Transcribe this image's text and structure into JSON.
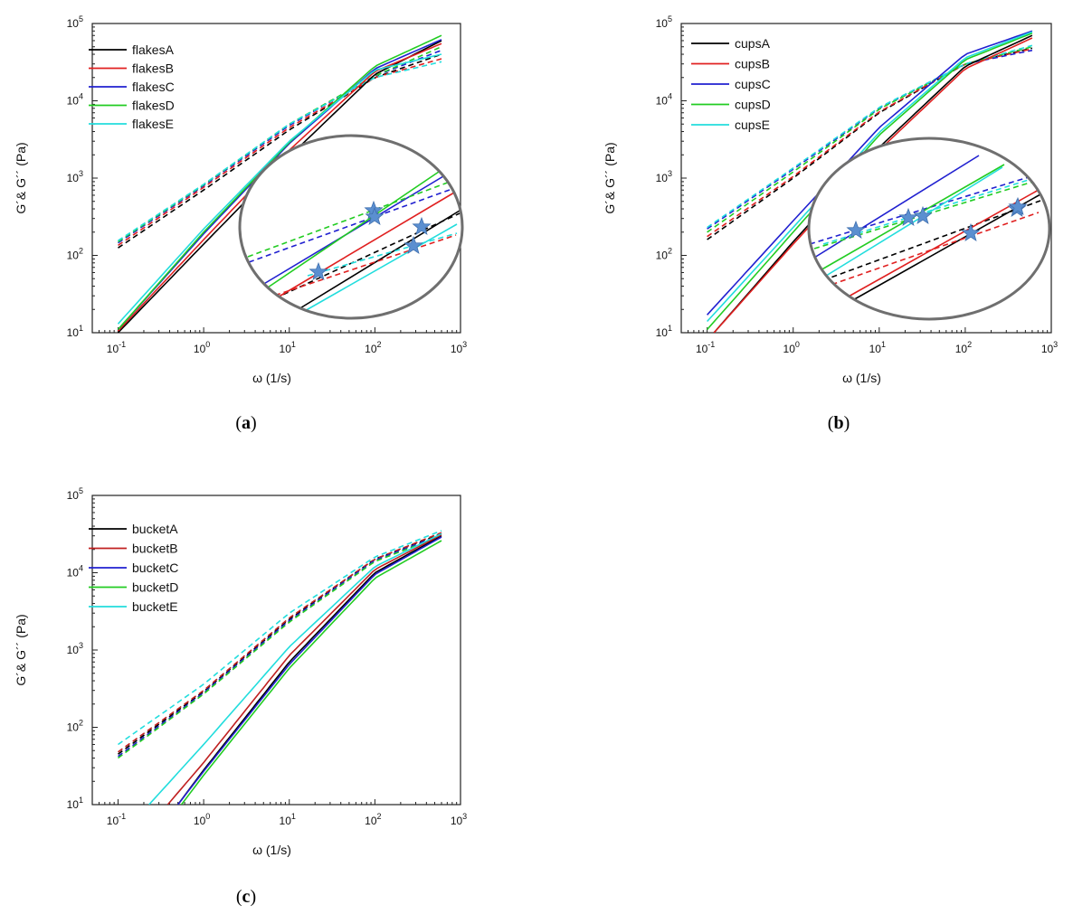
{
  "figure": {
    "panel_letters": [
      "a",
      "b",
      "c"
    ]
  },
  "chart_data": [
    {
      "type": "line",
      "panel": "a",
      "xlabel": "ω (1/s)",
      "ylabel": "G´& G´´ (Pa)",
      "xscale": "log",
      "yscale": "log",
      "xlim": [
        0.05,
        1000
      ],
      "ylim": [
        10,
        100000
      ],
      "x_ticks": [
        {
          "base": "10",
          "exp": "-1"
        },
        {
          "base": "10",
          "exp": "0"
        },
        {
          "base": "10",
          "exp": "1"
        },
        {
          "base": "10",
          "exp": "2"
        },
        {
          "base": "10",
          "exp": "3"
        }
      ],
      "y_ticks": [
        {
          "base": "10",
          "exp": "1"
        },
        {
          "base": "10",
          "exp": "2"
        },
        {
          "base": "10",
          "exp": "3"
        },
        {
          "base": "10",
          "exp": "4"
        },
        {
          "base": "10",
          "exp": "5"
        }
      ],
      "legend_position": "top-left",
      "line_styles": {
        "G_prime": "solid",
        "G_double_prime": "dashed"
      },
      "series": [
        {
          "name": "flakesA",
          "color": "#000000",
          "G_prime": {
            "x": [
              0.1,
              1,
              10,
              100,
              600
            ],
            "y": [
              10,
              140,
              1900,
              22000,
              60000
            ]
          },
          "G_double_prime": {
            "x": [
              0.1,
              1,
              10,
              100,
              600
            ],
            "y": [
              125,
              700,
              4200,
              20000,
              40000
            ]
          }
        },
        {
          "name": "flakesB",
          "color": "#e02020",
          "G_prime": {
            "x": [
              0.1,
              1,
              10,
              100,
              600
            ],
            "y": [
              10.5,
              160,
              2300,
              24000,
              55000
            ]
          },
          "G_double_prime": {
            "x": [
              0.1,
              1,
              10,
              100,
              600
            ],
            "y": [
              135,
              760,
              4500,
              20000,
              35000
            ]
          }
        },
        {
          "name": "flakesC",
          "color": "#2020d0",
          "G_prime": {
            "x": [
              0.1,
              1,
              10,
              100,
              600
            ],
            "y": [
              11,
              190,
              2800,
              26000,
              62000
            ]
          },
          "G_double_prime": {
            "x": [
              0.1,
              1,
              10,
              100,
              600
            ],
            "y": [
              145,
              800,
              4800,
              21000,
              45000
            ]
          }
        },
        {
          "name": "flakesD",
          "color": "#22cc22",
          "G_prime": {
            "x": [
              0.1,
              1,
              10,
              100,
              600
            ],
            "y": [
              11,
              200,
              2900,
              28000,
              70000
            ]
          },
          "G_double_prime": {
            "x": [
              0.1,
              1,
              10,
              100,
              600
            ],
            "y": [
              150,
              820,
              5000,
              21000,
              50000
            ]
          }
        },
        {
          "name": "flakesE",
          "color": "#22dddd",
          "G_prime": {
            "x": [
              0.1,
              1,
              10,
              100,
              600
            ],
            "y": [
              13,
              220,
              3000,
              25000,
              40000
            ]
          },
          "G_double_prime": {
            "x": [
              0.1,
              1,
              10,
              100,
              600
            ],
            "y": [
              155,
              830,
              5000,
              20000,
              32000
            ]
          }
        }
      ],
      "inset": {
        "shape": "ellipse",
        "content": "zoomed crossover region",
        "markers": "star",
        "marker_count": 5
      }
    },
    {
      "type": "line",
      "panel": "b",
      "xlabel": "ω (1/s)",
      "ylabel": "G´& G´´ (Pa)",
      "xscale": "log",
      "yscale": "log",
      "xlim": [
        0.05,
        1000
      ],
      "ylim": [
        10,
        100000
      ],
      "x_ticks": [
        {
          "base": "10",
          "exp": "-1"
        },
        {
          "base": "10",
          "exp": "0"
        },
        {
          "base": "10",
          "exp": "1"
        },
        {
          "base": "10",
          "exp": "2"
        },
        {
          "base": "10",
          "exp": "3"
        }
      ],
      "y_ticks": [
        {
          "base": "10",
          "exp": "1"
        },
        {
          "base": "10",
          "exp": "2"
        },
        {
          "base": "10",
          "exp": "3"
        },
        {
          "base": "10",
          "exp": "4"
        },
        {
          "base": "10",
          "exp": "5"
        }
      ],
      "legend_position": "top-left",
      "line_styles": {
        "G_prime": "solid",
        "G_double_prime": "dashed"
      },
      "series": [
        {
          "name": "cupsA",
          "color": "#000000",
          "G_prime": {
            "x": [
              0.12,
              1,
              10,
              100,
              600
            ],
            "y": [
              10,
              150,
              2500,
              28000,
              70000
            ]
          },
          "G_double_prime": {
            "x": [
              0.1,
              1,
              10,
              100,
              600
            ],
            "y": [
              160,
              1000,
              7000,
              30000,
              48000
            ]
          }
        },
        {
          "name": "cupsB",
          "color": "#e02020",
          "G_prime": {
            "x": [
              0.12,
              1,
              10,
              100,
              600
            ],
            "y": [
              10,
              140,
              2300,
              26000,
              65000
            ]
          },
          "G_double_prime": {
            "x": [
              0.1,
              1,
              10,
              100,
              600
            ],
            "y": [
              175,
              1050,
              7200,
              30000,
              47000
            ]
          }
        },
        {
          "name": "cupsC",
          "color": "#2020d0",
          "G_prime": {
            "x": [
              0.1,
              1,
              10,
              100,
              600
            ],
            "y": [
              17,
              280,
              4500,
              40000,
              80000
            ]
          },
          "G_double_prime": {
            "x": [
              0.1,
              1,
              10,
              100,
              600
            ],
            "y": [
              220,
              1300,
              8000,
              30000,
              45000
            ]
          }
        },
        {
          "name": "cupsD",
          "color": "#22cc22",
          "G_prime": {
            "x": [
              0.1,
              1,
              10,
              100,
              600
            ],
            "y": [
              11,
              200,
              3600,
              34000,
              75000
            ]
          },
          "G_double_prime": {
            "x": [
              0.1,
              1,
              10,
              100,
              600
            ],
            "y": [
              200,
              1200,
              7800,
              30000,
              50000
            ]
          }
        },
        {
          "name": "cupsE",
          "color": "#22dddd",
          "G_prime": {
            "x": [
              0.1,
              1,
              10,
              100,
              600
            ],
            "y": [
              14,
              230,
              3900,
              36000,
              78000
            ]
          },
          "G_double_prime": {
            "x": [
              0.1,
              1,
              10,
              100,
              600
            ],
            "y": [
              230,
              1350,
              8200,
              30000,
              52000
            ]
          }
        }
      ],
      "inset": {
        "shape": "ellipse",
        "content": "zoomed crossover region",
        "markers": "star",
        "marker_count": 6
      }
    },
    {
      "type": "line",
      "panel": "c",
      "xlabel": "ω (1/s)",
      "ylabel": "G´& G´´ (Pa)",
      "xscale": "log",
      "yscale": "log",
      "xlim": [
        0.05,
        1000
      ],
      "ylim": [
        10,
        100000
      ],
      "x_ticks": [
        {
          "base": "10",
          "exp": "-1"
        },
        {
          "base": "10",
          "exp": "0"
        },
        {
          "base": "10",
          "exp": "1"
        },
        {
          "base": "10",
          "exp": "2"
        },
        {
          "base": "10",
          "exp": "3"
        }
      ],
      "y_ticks": [
        {
          "base": "10",
          "exp": "1"
        },
        {
          "base": "10",
          "exp": "2"
        },
        {
          "base": "10",
          "exp": "3"
        },
        {
          "base": "10",
          "exp": "4"
        },
        {
          "base": "10",
          "exp": "5"
        }
      ],
      "legend_position": "top-left",
      "line_styles": {
        "G_prime": "solid",
        "G_double_prime": "dashed"
      },
      "series": [
        {
          "name": "bucketA",
          "color": "#000000",
          "G_prime": {
            "x": [
              0.5,
              1,
              10,
              100,
              600
            ],
            "y": [
              10,
              28,
              700,
              10000,
              30000
            ]
          },
          "G_double_prime": {
            "x": [
              0.1,
              1,
              10,
              100,
              600
            ],
            "y": [
              45,
              290,
              2500,
              15000,
              32000
            ]
          }
        },
        {
          "name": "bucketB",
          "color": "#c02020",
          "G_prime": {
            "x": [
              0.38,
              1,
              10,
              100,
              600
            ],
            "y": [
              10,
              35,
              850,
              11000,
              31000
            ]
          },
          "G_double_prime": {
            "x": [
              0.1,
              1,
              10,
              100,
              600
            ],
            "y": [
              48,
              300,
              2600,
              15000,
              33000
            ]
          }
        },
        {
          "name": "bucketC",
          "color": "#2020d0",
          "G_prime": {
            "x": [
              0.5,
              1,
              10,
              100,
              600
            ],
            "y": [
              10,
              27,
              650,
              9500,
              29000
            ]
          },
          "G_double_prime": {
            "x": [
              0.1,
              1,
              10,
              100,
              600
            ],
            "y": [
              42,
              280,
              2400,
              14500,
              31000
            ]
          }
        },
        {
          "name": "bucketD",
          "color": "#22cc22",
          "G_prime": {
            "x": [
              0.55,
              1,
              10,
              100,
              600
            ],
            "y": [
              10,
              24,
              580,
              8500,
              26000
            ]
          },
          "G_double_prime": {
            "x": [
              0.1,
              1,
              10,
              100,
              600
            ],
            "y": [
              40,
              270,
              2300,
              14000,
              30000
            ]
          }
        },
        {
          "name": "bucketE",
          "color": "#22dddd",
          "G_prime": {
            "x": [
              0.23,
              1,
              10,
              100,
              600
            ],
            "y": [
              10,
              60,
              1100,
              12000,
              32000
            ]
          },
          "G_double_prime": {
            "x": [
              0.1,
              1,
              10,
              100,
              600
            ],
            "y": [
              60,
              360,
              3000,
              16000,
              35000
            ]
          }
        }
      ]
    }
  ]
}
